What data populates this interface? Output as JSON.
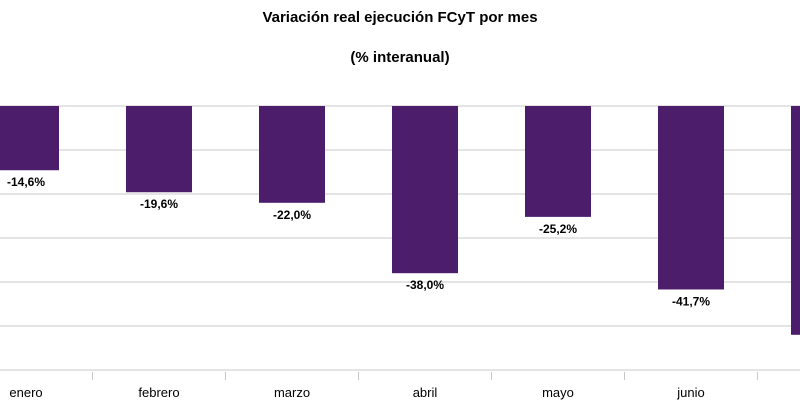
{
  "chart_data": {
    "type": "bar",
    "title": "Variación real ejecución FCyT por mes",
    "subtitle": "(% interanual)",
    "categories": [
      "enero",
      "febrero",
      "marzo",
      "abril",
      "mayo",
      "junio",
      ""
    ],
    "values": [
      -14.6,
      -19.6,
      -22.0,
      -38.0,
      -25.2,
      -41.7,
      -52.0
    ],
    "data_labels": [
      "-14,6%",
      "-19,6%",
      "-22,0%",
      "-38,0%",
      "-25,2%",
      "-41,7%",
      ""
    ],
    "ylim": [
      -60,
      0
    ],
    "ylabel": "",
    "xlabel": "",
    "grid": true,
    "bar_color": "#4b1d6b",
    "grid_color": "#c8c8c8"
  }
}
